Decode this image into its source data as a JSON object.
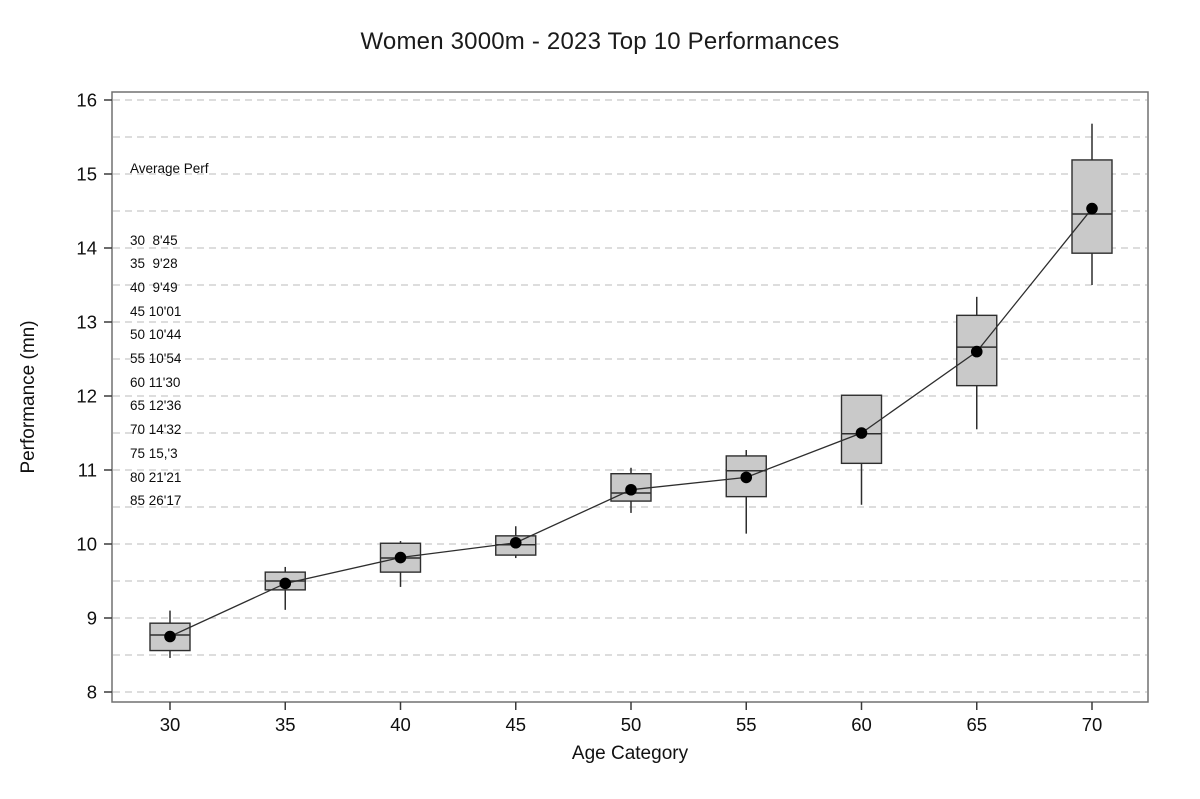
{
  "chart_data": {
    "type": "box",
    "title": "Women 3000m - 2023 Top 10 Performances",
    "xlabel": "Age Category",
    "ylabel": "Performance (mn)",
    "categories": [
      30,
      35,
      40,
      45,
      50,
      55,
      60,
      65,
      70
    ],
    "ylim": [
      8,
      16
    ],
    "y_ticks": [
      8,
      9,
      10,
      11,
      12,
      13,
      14,
      15,
      16
    ],
    "grid_step": 0.5,
    "grid": "horizontal-dashed",
    "legend": "none",
    "boxes": [
      {
        "age": 30,
        "whisker_low": 8.46,
        "q1": 8.56,
        "median": 8.77,
        "mean": 8.75,
        "q3": 8.93,
        "whisker_high": 9.1
      },
      {
        "age": 35,
        "whisker_low": 9.11,
        "q1": 9.38,
        "median": 9.5,
        "mean": 9.467,
        "q3": 9.62,
        "whisker_high": 9.69
      },
      {
        "age": 40,
        "whisker_low": 9.42,
        "q1": 9.62,
        "median": 9.81,
        "mean": 9.817,
        "q3": 10.01,
        "whisker_high": 10.04
      },
      {
        "age": 45,
        "whisker_low": 9.81,
        "q1": 9.85,
        "median": 9.99,
        "mean": 10.017,
        "q3": 10.11,
        "whisker_high": 10.24
      },
      {
        "age": 50,
        "whisker_low": 10.42,
        "q1": 10.58,
        "median": 10.69,
        "mean": 10.733,
        "q3": 10.95,
        "whisker_high": 11.03
      },
      {
        "age": 55,
        "whisker_low": 10.14,
        "q1": 10.64,
        "median": 10.99,
        "mean": 10.9,
        "q3": 11.19,
        "whisker_high": 11.27
      },
      {
        "age": 60,
        "whisker_low": 10.53,
        "q1": 11.09,
        "median": 11.49,
        "mean": 11.5,
        "q3": 12.01,
        "whisker_high": 12.01
      },
      {
        "age": 65,
        "whisker_low": 11.55,
        "q1": 12.14,
        "median": 12.66,
        "mean": 12.6,
        "q3": 13.09,
        "whisker_high": 13.34
      },
      {
        "age": 70,
        "whisker_low": 13.5,
        "q1": 13.93,
        "median": 14.46,
        "mean": 14.533,
        "q3": 15.19,
        "whisker_high": 15.68
      }
    ],
    "mean_line_connects_dots": true,
    "colors": {
      "box_fill": "#c9c9c9",
      "box_stroke": "#2e2e2e",
      "whisker": "#2e2e2e",
      "mean_dot": "#000000",
      "mean_line": "#2e2e2e",
      "gridline": "#d2d2d2",
      "plot_border": "#707070",
      "tick": "#3a3a3a",
      "text": "#0f0f0f"
    }
  },
  "annotation": {
    "title": "Average Perf",
    "lines": [
      "30  8'45",
      "35  9'28",
      "40  9'49",
      "45 10'01",
      "50 10'44",
      "55 10'54",
      "60 11'30",
      "65 12'36",
      "70 14'32",
      "75 15,'3",
      "80 21'21",
      "85 26'17"
    ]
  }
}
